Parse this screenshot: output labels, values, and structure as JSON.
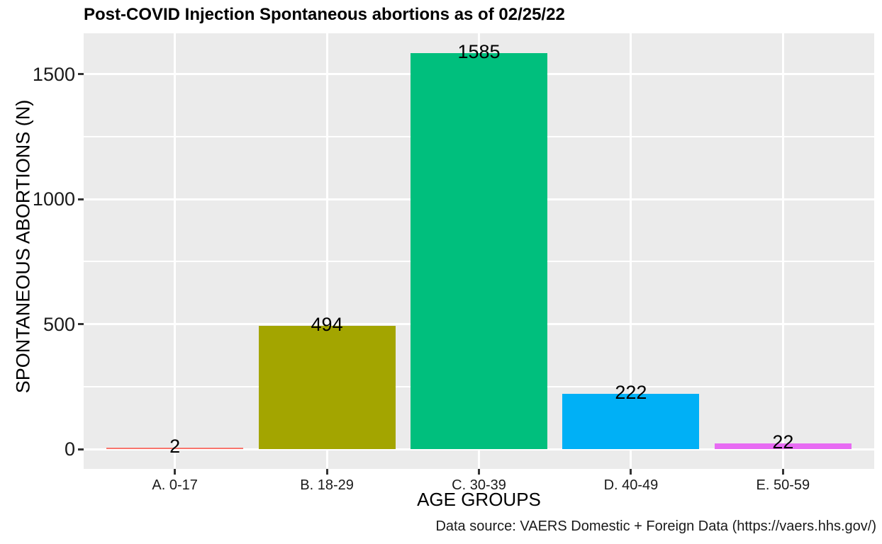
{
  "title": "Post-COVID Injection Spontaneous abortions as of 02/25/22",
  "caption": "Data source: VAERS Domestic + Foreign Data (https://vaers.hhs.gov/)",
  "chart_data": {
    "type": "bar",
    "title": "Post-COVID Injection Spontaneous abortions as of 02/25/22",
    "xlabel": "AGE GROUPS",
    "ylabel": "SPONTANEOUS ABORTIONS (N)",
    "categories": [
      "A. 0-17",
      "B. 18-29",
      "C. 30-39",
      "D. 40-49",
      "E. 50-59"
    ],
    "values": [
      2,
      494,
      1585,
      222,
      22
    ],
    "value_labels": [
      "2",
      "494",
      "1585",
      "222",
      "22"
    ],
    "bar_colors": [
      "#F8766D",
      "#A3A500",
      "#00BF7D",
      "#00B0F6",
      "#E76BF3"
    ],
    "y_ticks": [
      0,
      500,
      1000,
      1500
    ],
    "y_minor_ticks": [
      250,
      750,
      1250
    ],
    "ylim": [
      0,
      1585
    ],
    "grid": "on",
    "legend": "none",
    "panel_bg": "#EBEBEB",
    "grid_color": "#FFFFFF"
  }
}
